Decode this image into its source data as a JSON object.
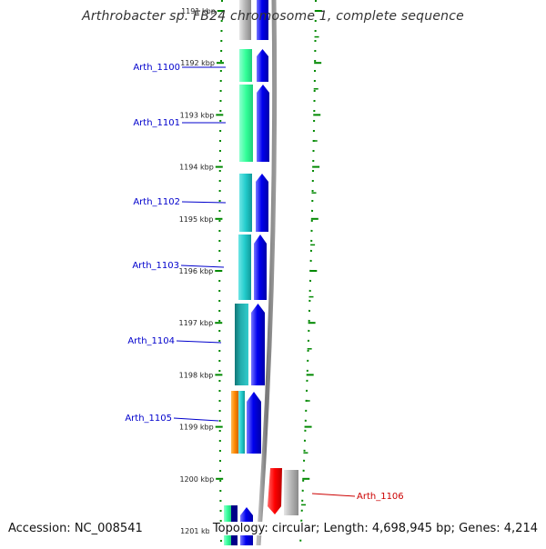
{
  "header": {
    "title": "Arthrobacter sp. FB24 chromosome 1, complete sequence"
  },
  "footer": {
    "accession": "Accession: NC_008541",
    "summary": "Topology: circular; Length: 4,698,945 bp; Genes: 4,214"
  },
  "colors": {
    "gene_blue": "#0000ee",
    "gene_green": "#33ff99",
    "gene_teal": "#22cccc",
    "gene_orange": "#ff8800",
    "gene_red": "#ff0000",
    "gene_gray": "#b5b5b5",
    "label_blue": "#0000cc",
    "label_red": "#cc0000",
    "tick_green": "#008800",
    "backbone": "#888888"
  },
  "ticks": [
    {
      "label": "1191 kbp"
    },
    {
      "label": "1192 kbp"
    },
    {
      "label": "1193 kbp"
    },
    {
      "label": "1194 kbp"
    },
    {
      "label": "1195 kbp"
    },
    {
      "label": "1196 kbp"
    },
    {
      "label": "1197 kbp"
    },
    {
      "label": "1198 kbp"
    },
    {
      "label": "1199 kbp"
    },
    {
      "label": "1200 kbp"
    },
    {
      "label": "1201 kbp"
    }
  ],
  "genes": [
    {
      "name": "Arth_1100",
      "strand": "+"
    },
    {
      "name": "Arth_1101",
      "strand": "+"
    },
    {
      "name": "Arth_1102",
      "strand": "+"
    },
    {
      "name": "Arth_1103",
      "strand": "+"
    },
    {
      "name": "Arth_1104",
      "strand": "+"
    },
    {
      "name": "Arth_1105",
      "strand": "+"
    },
    {
      "name": "Arth_1106",
      "strand": "-"
    }
  ]
}
